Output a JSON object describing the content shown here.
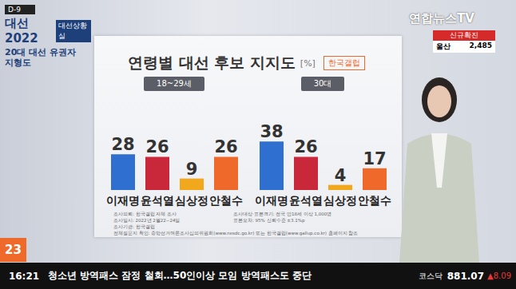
{
  "broadcast": {
    "dday": "D-9",
    "logo": "대선2022",
    "program": "대선상황실",
    "segment": "20대 대선 유권자 지형도",
    "channel": "연합뉴스TV",
    "covid_label": "신규확진",
    "covid_region": "울산",
    "covid_count": "2,485",
    "channel_number": "23",
    "time": "16:21",
    "headline": "청소년 방역패스 잠정 철회…50인이상 모임 방역패스도 중단",
    "index_name": "코스닥",
    "index_value": "881.07",
    "index_change": "▲8.09"
  },
  "title": "연령별 대선 후보 지지도",
  "title_unit": "[%]",
  "source": "한국갤럽",
  "chart_data": [
    {
      "type": "bar",
      "subtitle": "18~29세",
      "categories": [
        "이재명",
        "윤석열",
        "심상정",
        "안철수"
      ],
      "values": [
        28,
        26,
        9,
        26
      ],
      "colors": [
        "#2f6fd0",
        "#c8283a",
        "#f2a81d",
        "#ef6a2a"
      ],
      "ylim": [
        0,
        60
      ],
      "data_labels": true,
      "tick_labels": "x"
    },
    {
      "type": "bar",
      "subtitle": "30대",
      "categories": [
        "이재명",
        "윤석열",
        "심상정",
        "안철수"
      ],
      "values": [
        38,
        26,
        4,
        17
      ],
      "colors": [
        "#2f6fd0",
        "#c8283a",
        "#f2a81d",
        "#ef6a2a"
      ],
      "ylim": [
        0,
        60
      ],
      "data_labels": true,
      "tick_labels": "x"
    }
  ],
  "footnotes": [
    "조사의뢰: 한국갤럽 자체 조사",
    "조사대상·표본크기: 전국 만18세 이상 1,000명",
    "조사일시: 2022년 2월22~24일",
    "표본오차: 95% 신뢰수준 ±3.1%p",
    "조사기관: 한국갤럽",
    "전체질문지 확인: 중앙선거여론조사심의위원회(www.nesdc.go.kr) 또는 한국갤럽(www.gallup.co.kr) 홈페이지 참조"
  ]
}
